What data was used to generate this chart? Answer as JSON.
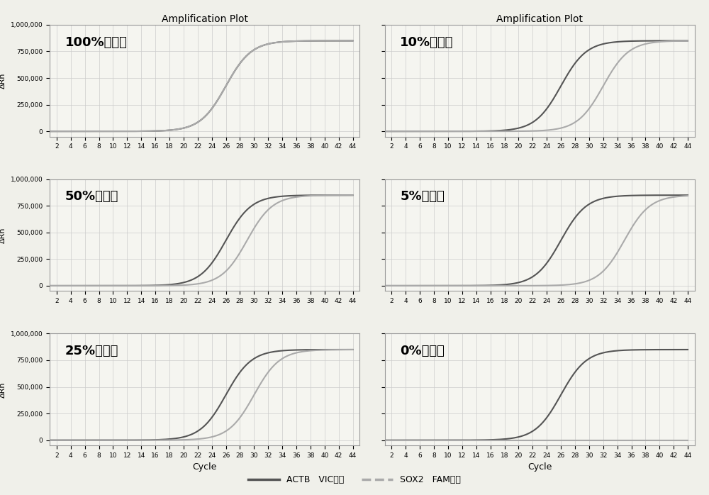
{
  "panels": [
    {
      "label": "100%甲基化",
      "actb_ct": 26,
      "sox2_ct": 26
    },
    {
      "label": "10%甲基化",
      "actb_ct": 26,
      "sox2_ct": 32
    },
    {
      "label": "50%甲基化",
      "actb_ct": 26,
      "sox2_ct": 29
    },
    {
      "label": "5%甲基化",
      "actb_ct": 26,
      "sox2_ct": 35
    },
    {
      "label": "25%甲基化",
      "actb_ct": 26,
      "sox2_ct": 30
    },
    {
      "label": "0%甲基化",
      "actb_ct": 26,
      "sox2_ct": 999
    }
  ],
  "title": "Amplification Plot",
  "ylabel": "ΔRn",
  "xlabel": "Cycle",
  "ylim": [
    -50000,
    1000000
  ],
  "xlim": [
    1,
    45
  ],
  "yticks": [
    0,
    250000,
    500000,
    750000,
    1000000
  ],
  "ytick_labels": [
    "0",
    "250,000",
    "500,000",
    "750,000",
    "1,000,000"
  ],
  "xticks": [
    2,
    4,
    6,
    8,
    10,
    12,
    14,
    16,
    18,
    20,
    22,
    24,
    26,
    28,
    30,
    32,
    34,
    36,
    38,
    40,
    42,
    44
  ],
  "actb_color": "#555555",
  "sox2_color": "#aaaaaa",
  "background_color": "#f5f5f0",
  "grid_color": "#cccccc",
  "actb_label": "ACTB   VIC标记",
  "sox2_label": "SOX2   FAM标记",
  "actb_plateau": 850000,
  "sox2_plateau": 850000,
  "label_fontsize": 13,
  "title_fontsize": 10,
  "tick_fontsize": 6.5,
  "ylabel_fontsize": 8,
  "xlabel_fontsize": 9
}
